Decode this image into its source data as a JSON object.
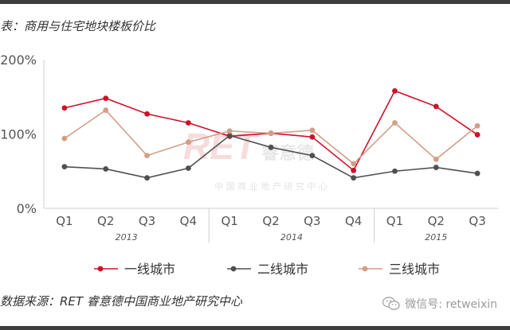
{
  "title": "表：商用与住宅地块楼板价比",
  "source": "数据来源：RET 睿意德中国商业地产研究中心",
  "watermark": {
    "logo": "RET",
    "brand": "睿意德",
    "subtitle": "中 国 商 业 地 产 研 究 中 心"
  },
  "wechat": {
    "label": "微信号: retweixin",
    "icon": "wechat-icon"
  },
  "chart_data": {
    "type": "line",
    "categories": [
      "Q1",
      "Q2",
      "Q3",
      "Q4",
      "Q1",
      "Q2",
      "Q3",
      "Q4",
      "Q1",
      "Q2",
      "Q3"
    ],
    "year_groups": [
      {
        "label": "2013",
        "start": 0,
        "end": 3
      },
      {
        "label": "2014",
        "start": 4,
        "end": 7
      },
      {
        "label": "2015",
        "start": 8,
        "end": 10
      }
    ],
    "yticks": [
      0,
      100,
      200
    ],
    "ytick_labels": [
      "0%",
      "100%",
      "200%"
    ],
    "ylim": [
      0,
      200
    ],
    "grid": false,
    "legend_position": "bottom",
    "series": [
      {
        "name": "一线城市",
        "color": "#d0102a",
        "values": [
          135,
          148,
          127,
          115,
          97,
          101,
          96,
          51,
          158,
          137,
          99
        ]
      },
      {
        "name": "二线城市",
        "color": "#505050",
        "values": [
          56,
          53,
          41,
          54,
          98,
          82,
          71,
          41,
          50,
          55,
          47
        ]
      },
      {
        "name": "三线城市",
        "color": "#d39e86",
        "values": [
          94,
          132,
          71,
          89,
          104,
          101,
          105,
          60,
          115,
          66,
          111
        ]
      }
    ]
  }
}
